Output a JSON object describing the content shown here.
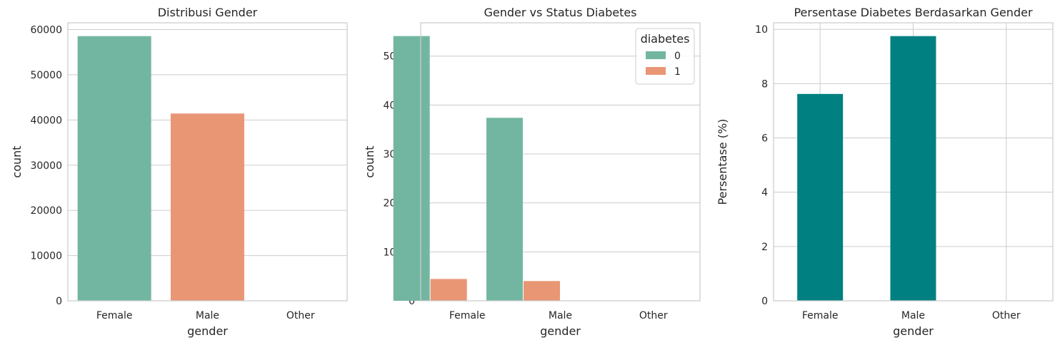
{
  "chart_data": [
    {
      "type": "bar",
      "title": "Distribusi Gender",
      "xlabel": "gender",
      "ylabel": "count",
      "categories": [
        "Female",
        "Male",
        "Other"
      ],
      "values": [
        58552,
        41430,
        18
      ],
      "colors": [
        "#72b6a1",
        "#e99675",
        "#8da0cb"
      ],
      "ylim": [
        0,
        61500
      ],
      "yticks": [
        0,
        10000,
        20000,
        30000,
        40000,
        50000,
        60000
      ],
      "grid": "horizontal"
    },
    {
      "type": "bar",
      "title": "Gender vs Status Diabetes",
      "xlabel": "gender",
      "ylabel": "count",
      "categories": [
        "Female",
        "Male",
        "Other"
      ],
      "series": [
        {
          "name": "0",
          "values": [
            54091,
            37391,
            18
          ],
          "color": "#72b6a1"
        },
        {
          "name": "1",
          "values": [
            4461,
            4039,
            0
          ],
          "color": "#e99675"
        }
      ],
      "legend_title": "diabetes",
      "legend_position": "top-right",
      "ylim": [
        0,
        56800
      ],
      "yticks": [
        0,
        10000,
        20000,
        30000,
        40000,
        50000
      ],
      "grid": "horizontal"
    },
    {
      "type": "bar",
      "title": "Persentase Diabetes Berdasarkan Gender",
      "xlabel": "gender",
      "ylabel": "Persentase (%)",
      "categories": [
        "Female",
        "Male",
        "Other"
      ],
      "values": [
        7.62,
        9.75,
        0
      ],
      "color": "#008080",
      "ylim": [
        0,
        10.24
      ],
      "yticks": [
        0,
        2,
        4,
        6,
        8,
        10
      ],
      "grid": "both"
    }
  ]
}
